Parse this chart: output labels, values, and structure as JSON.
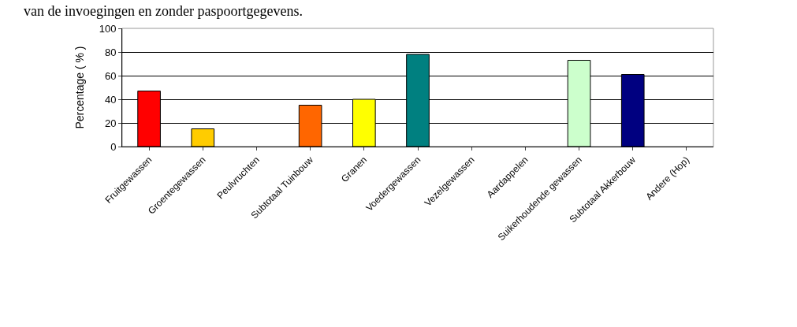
{
  "chart_data": {
    "type": "bar",
    "ylabel": "Percentage ( % )",
    "annotations": [
      "van de invoegingen en zonder paspoortgegevens."
    ],
    "categories": [
      "Fruitgewassen",
      "Groentegewassen",
      "Peulvruchten",
      "Subtotaal Tuinbouw",
      "Granen",
      "Voedergewassen",
      "Vezelgewassen",
      "Aardappelen",
      "Suikerhoudende gewassen",
      "Subtotaal Akkerbouw",
      "Andere (Hop)"
    ],
    "values": [
      47,
      15,
      null,
      35,
      40,
      78,
      null,
      null,
      73,
      61,
      null
    ],
    "colors": [
      "#ff0000",
      "#ffcc00",
      null,
      "#ff6600",
      "#ffff00",
      "#008080",
      null,
      null,
      "#ccffcc",
      "#000080",
      null
    ],
    "ylim": [
      0,
      100
    ],
    "yticks": [
      0,
      20,
      40,
      60,
      80,
      100
    ],
    "grid": "y",
    "legend": false
  }
}
